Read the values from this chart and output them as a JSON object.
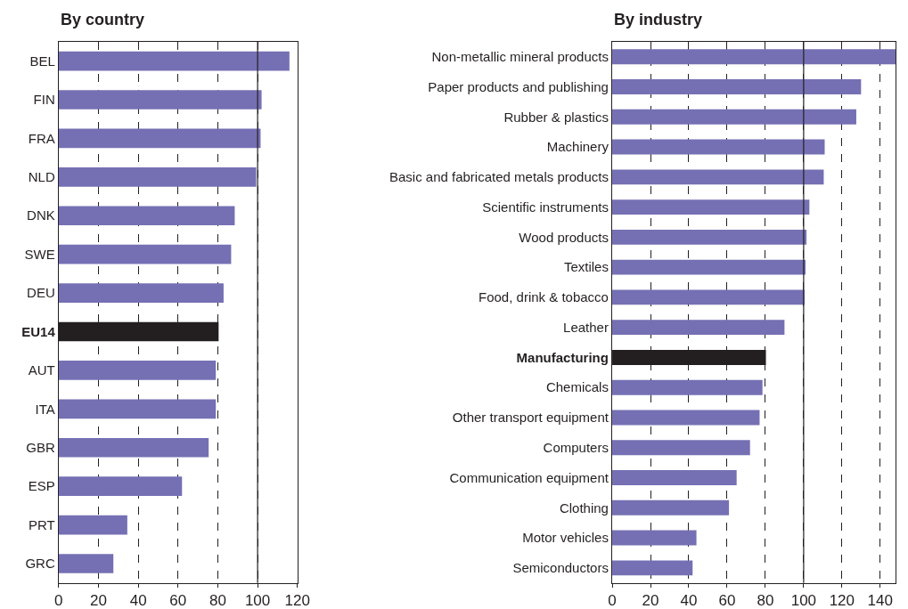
{
  "chart_data": [
    {
      "type": "bar",
      "orientation": "horizontal",
      "title": "By country",
      "categories": [
        "BEL",
        "FIN",
        "FRA",
        "NLD",
        "DNK",
        "SWE",
        "DEU",
        "EU14",
        "AUT",
        "ITA",
        "GBR",
        "ESP",
        "PRT",
        "GRC"
      ],
      "values": [
        116,
        102,
        101.5,
        99.3,
        88.5,
        86.7,
        82.9,
        80.4,
        79,
        79,
        75.4,
        62,
        34.5,
        27.5
      ],
      "colors": [
        "#7570b3",
        "#7570b3",
        "#7570b3",
        "#7570b3",
        "#7570b3",
        "#7570b3",
        "#7570b3",
        "#231f20",
        "#7570b3",
        "#7570b3",
        "#7570b3",
        "#7570b3",
        "#7570b3",
        "#7570b3"
      ],
      "xlim": [
        0,
        120
      ],
      "xticks": [
        0,
        20,
        40,
        60,
        80,
        100,
        120
      ],
      "grid": "x",
      "ref_lines": [
        {
          "axis": "x",
          "value": 100,
          "color": "#231f20",
          "line_style": "solid"
        }
      ]
    },
    {
      "type": "bar",
      "orientation": "horizontal",
      "title": "By industry",
      "categories": [
        "Non-metallic mineral products",
        "Paper products and publishing",
        "Rubber & plastics",
        "Machinery",
        "Basic and fabricated metals products",
        "Scientific instruments",
        "Wood products",
        "Textiles",
        "Food, drink & tobacco",
        "Leather",
        "Manufacturing",
        "Chemicals",
        "Other transport equipment",
        "Computers",
        "Communication equipment",
        "Clothing",
        "Motor vehicles",
        "Semiconductors"
      ],
      "values": [
        148,
        130,
        127.5,
        111,
        110.5,
        103,
        101.5,
        101,
        100.5,
        90,
        80.3,
        78.5,
        77,
        72,
        65,
        61,
        44,
        42
      ],
      "colors": [
        "#7570b3",
        "#7570b3",
        "#7570b3",
        "#7570b3",
        "#7570b3",
        "#7570b3",
        "#7570b3",
        "#7570b3",
        "#7570b3",
        "#7570b3",
        "#231f20",
        "#7570b3",
        "#7570b3",
        "#7570b3",
        "#7570b3",
        "#7570b3",
        "#7570b3",
        "#7570b3"
      ],
      "xlim": [
        0,
        148
      ],
      "xticks": [
        0,
        20,
        40,
        60,
        80,
        100,
        120,
        140
      ],
      "grid": "x",
      "ref_lines": [
        {
          "axis": "x",
          "value": 100,
          "color": "#231f20",
          "line_style": "solid"
        }
      ]
    }
  ]
}
